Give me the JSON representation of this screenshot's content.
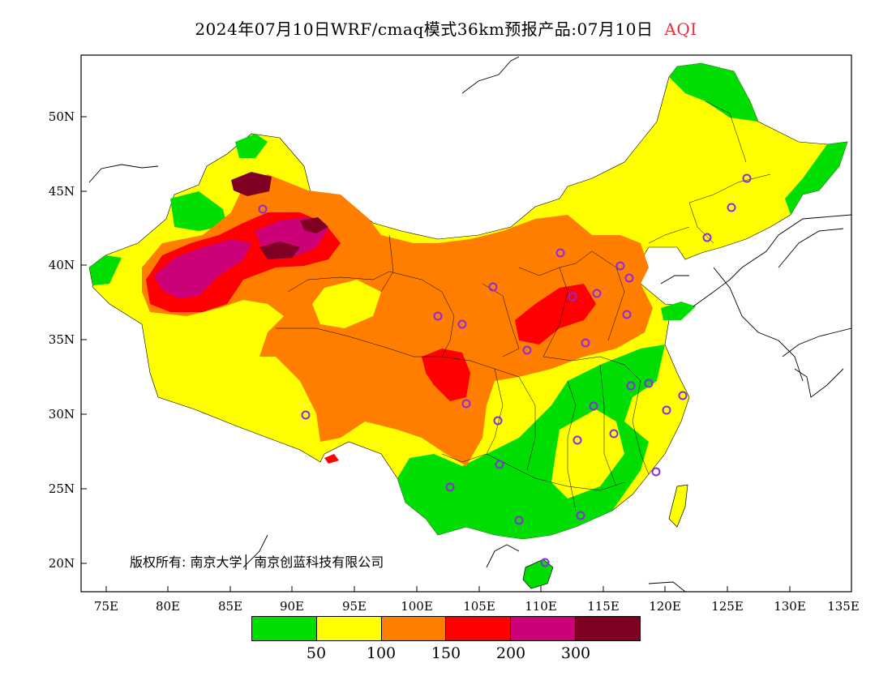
{
  "title": {
    "main": "2024年07月10日WRF/cmaq模式36km预报产品:07月10日",
    "variable": "AQI"
  },
  "axes": {
    "lat_labels": [
      "50N",
      "45N",
      "40N",
      "35N",
      "30N",
      "25N",
      "20N"
    ],
    "lon_labels": [
      "75E",
      "80E",
      "85E",
      "90E",
      "95E",
      "100E",
      "105E",
      "110E",
      "115E",
      "120E",
      "125E",
      "130E",
      "135E"
    ]
  },
  "legend": {
    "colors": [
      "#00dd00",
      "#ffff00",
      "#ff7e00",
      "#ff0000",
      "#cc0077",
      "#7e0023"
    ],
    "labels": [
      "50",
      "100",
      "150",
      "200",
      "300"
    ]
  },
  "copyright": "版权所有: 南京大学│ 南京创蓝科技有限公司"
}
